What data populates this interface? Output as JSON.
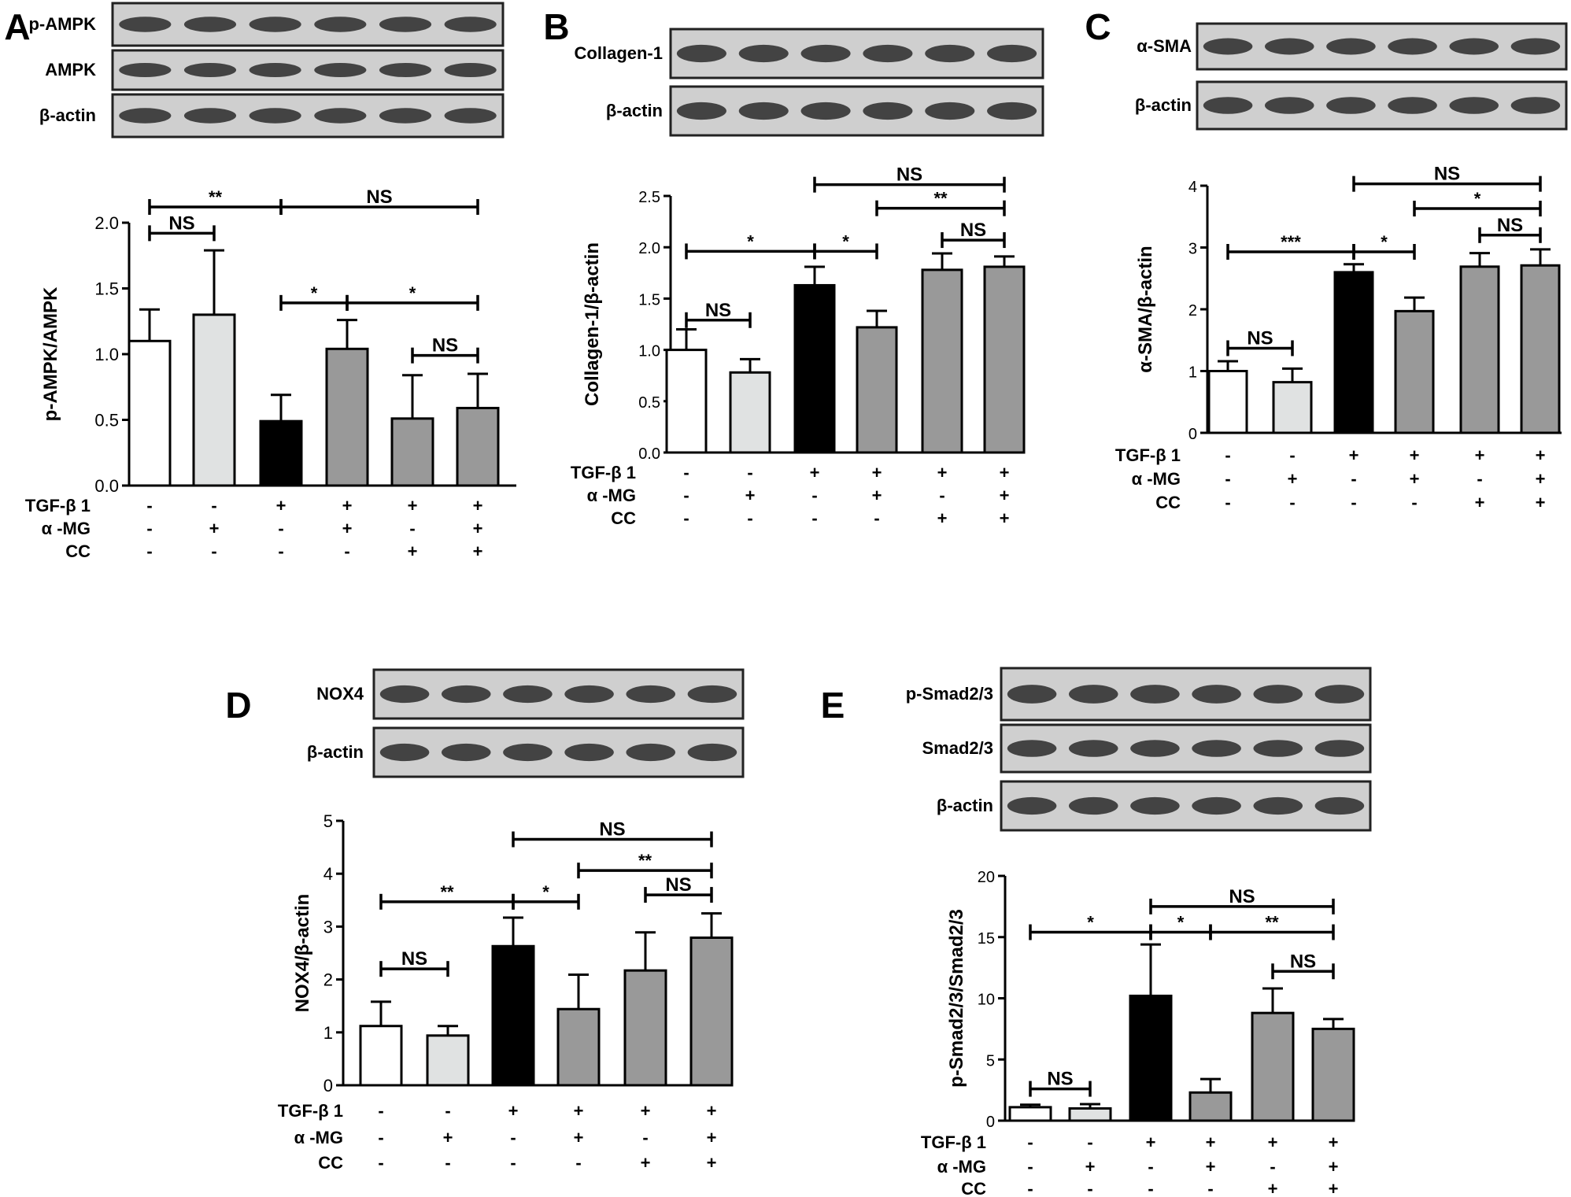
{
  "figure": {
    "colors": {
      "bar_control": "#ffffff",
      "bar_alpha_mg": "#e0e2e2",
      "bar_tgf": "#000000",
      "bar_treated": "#999999",
      "blot_bg": "#cfcfcf",
      "blot_band": "#2a2a2a",
      "axis": "#000000"
    },
    "treatment_rows": [
      {
        "label": "TGF-β 1",
        "signs": [
          "-",
          "-",
          "+",
          "+",
          "+",
          "+"
        ]
      },
      {
        "label": "α -MG",
        "signs": [
          "-",
          "+",
          "-",
          "+",
          "-",
          "+"
        ]
      },
      {
        "label": "CC",
        "signs": [
          "-",
          "-",
          "-",
          "-",
          "+",
          "+"
        ]
      }
    ]
  },
  "chart_data": [
    {
      "panel": "A",
      "type": "bar",
      "ylabel": "p-AMPK/AMPK",
      "ylim": [
        0,
        2.0
      ],
      "yticks": [
        "0.0",
        "0.5",
        "1.0",
        "1.5",
        "2.0"
      ],
      "blot_labels": [
        "p-AMPK",
        "AMPK",
        "β-actin"
      ],
      "values": [
        1.1,
        1.3,
        0.49,
        1.04,
        0.51,
        0.59
      ],
      "errors": [
        0.24,
        0.49,
        0.2,
        0.22,
        0.33,
        0.26
      ],
      "significance": [
        {
          "from": 1,
          "to": 3,
          "y": 2.12,
          "label": "**"
        },
        {
          "from": 1,
          "to": 2,
          "y": 1.92,
          "label": "NS"
        },
        {
          "from": 3,
          "to": 6,
          "y": 2.12,
          "label": "NS"
        },
        {
          "from": 3,
          "to": 4,
          "y": 1.39,
          "label": "*"
        },
        {
          "from": 4,
          "to": 6,
          "y": 1.39,
          "label": "*"
        },
        {
          "from": 5,
          "to": 6,
          "y": 0.99,
          "label": "NS"
        }
      ]
    },
    {
      "panel": "B",
      "type": "bar",
      "ylabel": "Collagen-1/β-actin",
      "ylim": [
        0,
        2.5
      ],
      "yticks": [
        "0.0",
        "0.5",
        "1.0",
        "1.5",
        "2.0",
        "2.5"
      ],
      "blot_labels": [
        "Collagen-1",
        "β-actin"
      ],
      "values": [
        1.0,
        0.78,
        1.63,
        1.22,
        1.78,
        1.81
      ],
      "errors": [
        0.2,
        0.13,
        0.18,
        0.16,
        0.16,
        0.1
      ],
      "significance": [
        {
          "from": 3,
          "to": 6,
          "y": 2.61,
          "label": "NS"
        },
        {
          "from": 4,
          "to": 6,
          "y": 2.38,
          "label": "**"
        },
        {
          "from": 1,
          "to": 3,
          "y": 1.96,
          "label": "*"
        },
        {
          "from": 3,
          "to": 4,
          "y": 1.96,
          "label": "*"
        },
        {
          "from": 5,
          "to": 6,
          "y": 2.07,
          "label": "NS"
        },
        {
          "from": 1,
          "to": 2,
          "y": 1.29,
          "label": "NS"
        }
      ]
    },
    {
      "panel": "C",
      "type": "bar",
      "ylabel": "α-SMA/β-actin",
      "ylim": [
        0,
        4
      ],
      "yticks": [
        "0",
        "1",
        "2",
        "3",
        "4"
      ],
      "blot_labels": [
        "α-SMA",
        "β-actin"
      ],
      "values": [
        1.0,
        0.82,
        2.6,
        1.97,
        2.69,
        2.71
      ],
      "errors": [
        0.16,
        0.22,
        0.13,
        0.22,
        0.22,
        0.26
      ],
      "significance": [
        {
          "from": 3,
          "to": 6,
          "y": 4.03,
          "label": "NS"
        },
        {
          "from": 4,
          "to": 6,
          "y": 3.63,
          "label": "*"
        },
        {
          "from": 5,
          "to": 6,
          "y": 3.2,
          "label": "NS"
        },
        {
          "from": 1,
          "to": 3,
          "y": 2.93,
          "label": "***"
        },
        {
          "from": 3,
          "to": 4,
          "y": 2.93,
          "label": "*"
        },
        {
          "from": 1,
          "to": 2,
          "y": 1.37,
          "label": "NS"
        }
      ]
    },
    {
      "panel": "D",
      "type": "bar",
      "ylabel": "NOX4/β-actin",
      "ylim": [
        0,
        5
      ],
      "yticks": [
        "0",
        "1",
        "2",
        "3",
        "4",
        "5"
      ],
      "blot_labels": [
        "NOX4",
        "β-actin"
      ],
      "values": [
        1.12,
        0.94,
        2.63,
        1.44,
        2.17,
        2.79
      ],
      "errors": [
        0.46,
        0.18,
        0.54,
        0.65,
        0.72,
        0.46
      ],
      "significance": [
        {
          "from": 3,
          "to": 6,
          "y": 4.65,
          "label": "NS"
        },
        {
          "from": 4,
          "to": 6,
          "y": 4.06,
          "label": "**"
        },
        {
          "from": 5,
          "to": 6,
          "y": 3.6,
          "label": "NS"
        },
        {
          "from": 1,
          "to": 3,
          "y": 3.47,
          "label": "**"
        },
        {
          "from": 3,
          "to": 4,
          "y": 3.47,
          "label": "*"
        },
        {
          "from": 1,
          "to": 2,
          "y": 2.2,
          "label": "NS"
        }
      ]
    },
    {
      "panel": "E",
      "type": "bar",
      "ylabel": "p-Smad2/3/Smad2/3",
      "ylim": [
        0,
        20
      ],
      "yticks": [
        "0",
        "5",
        "10",
        "15",
        "20"
      ],
      "blot_labels": [
        "p-Smad2/3",
        "Smad2/3",
        "β-actin"
      ],
      "values": [
        1.1,
        1.0,
        10.2,
        2.3,
        8.8,
        7.5
      ],
      "errors": [
        0.2,
        0.35,
        4.2,
        1.1,
        2.0,
        0.8
      ],
      "significance": [
        {
          "from": 3,
          "to": 6,
          "y": 17.5,
          "label": "NS"
        },
        {
          "from": 1,
          "to": 3,
          "y": 15.4,
          "label": "*"
        },
        {
          "from": 3,
          "to": 4,
          "y": 15.4,
          "label": "*"
        },
        {
          "from": 4,
          "to": 6,
          "y": 15.4,
          "label": "**"
        },
        {
          "from": 5,
          "to": 6,
          "y": 12.2,
          "label": "NS"
        },
        {
          "from": 1,
          "to": 2,
          "y": 2.6,
          "label": "NS"
        }
      ]
    }
  ]
}
